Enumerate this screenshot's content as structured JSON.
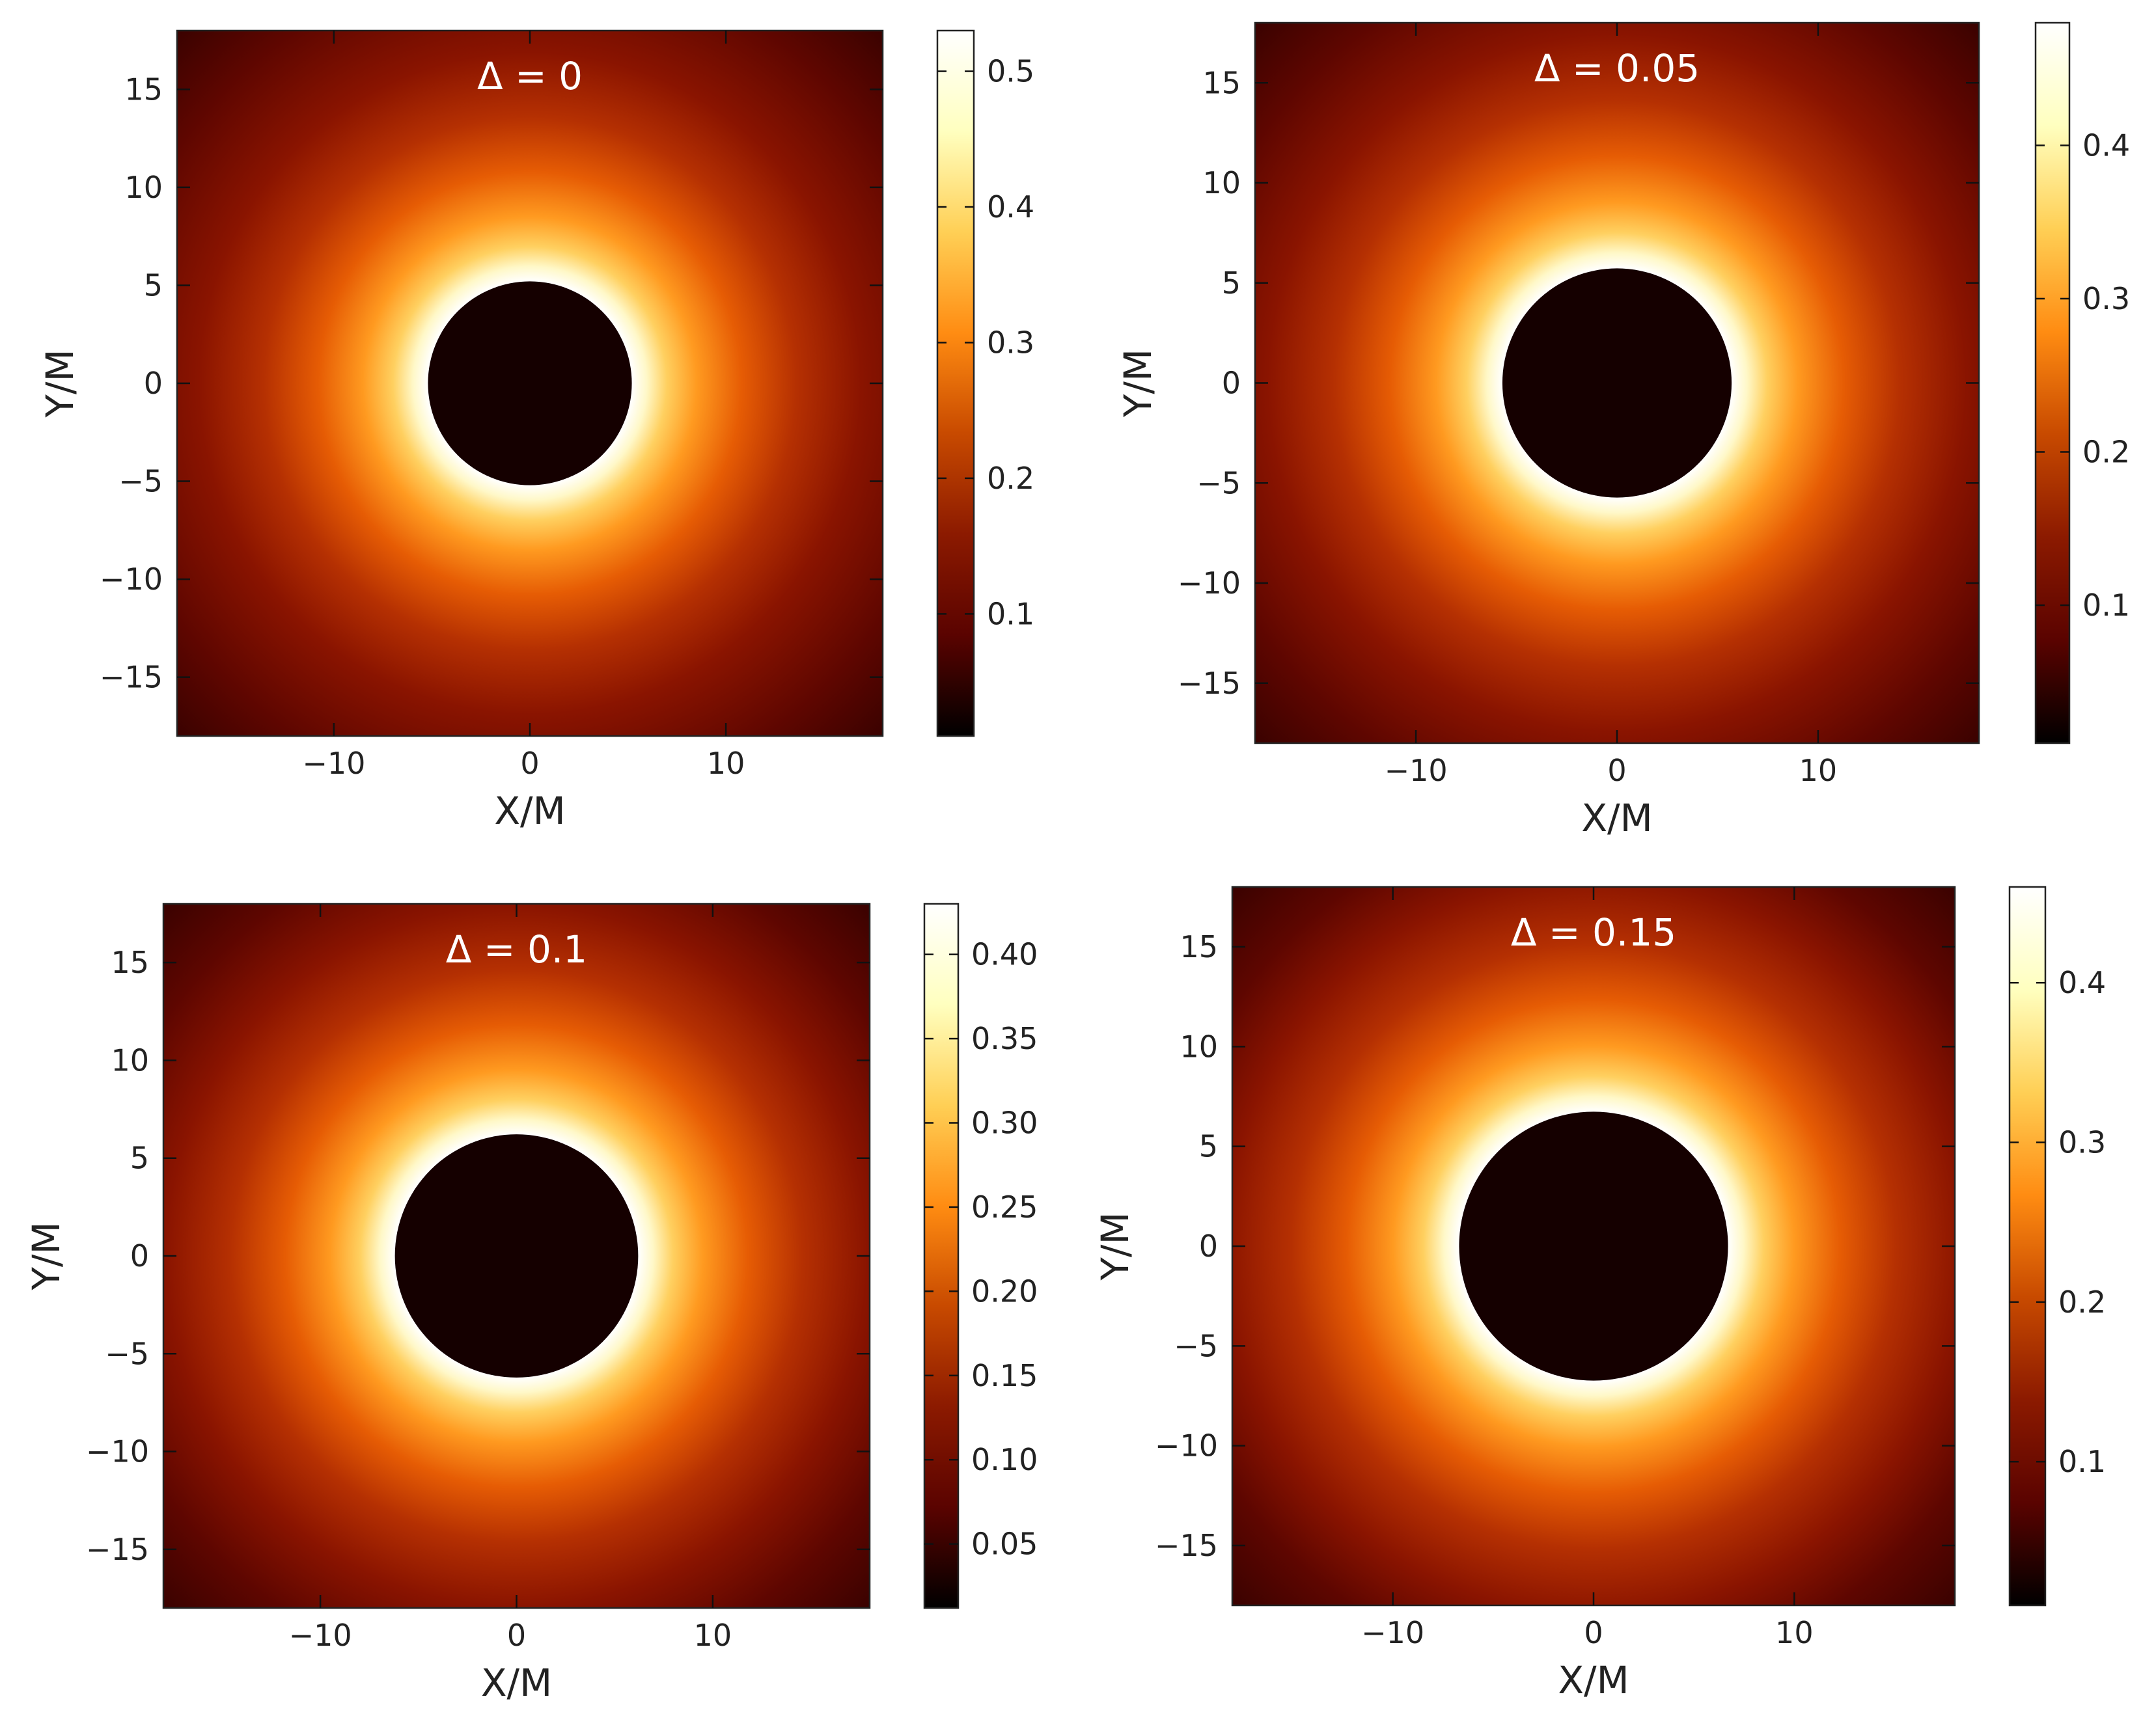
{
  "chart_data": [
    {
      "type": "heatmap",
      "title": "Δ = 0",
      "xlabel": "X/M",
      "ylabel": "Y/M",
      "xlim": [
        -18,
        18
      ],
      "ylim": [
        -18,
        18
      ],
      "xticks": [
        -10,
        0,
        10
      ],
      "yticks": [
        -15,
        -10,
        -5,
        0,
        5,
        10,
        15
      ],
      "shadow_radius": 5.2,
      "colorbar": {
        "range": [
          0.01,
          0.53
        ],
        "ticks": [
          0.1,
          0.2,
          0.3,
          0.4,
          0.5
        ],
        "tick_labels": [
          "0.1",
          "0.2",
          "0.3",
          "0.4",
          "0.5"
        ]
      }
    },
    {
      "type": "heatmap",
      "title": "Δ = 0.05",
      "xlabel": "X/M",
      "ylabel": "Y/M",
      "xlim": [
        -18,
        18
      ],
      "ylim": [
        -18,
        18
      ],
      "xticks": [
        -10,
        0,
        10
      ],
      "yticks": [
        -15,
        -10,
        -5,
        0,
        5,
        10,
        15
      ],
      "shadow_radius": 5.7,
      "colorbar": {
        "range": [
          0.01,
          0.48
        ],
        "ticks": [
          0.1,
          0.2,
          0.3,
          0.4
        ],
        "tick_labels": [
          "0.1",
          "0.2",
          "0.3",
          "0.4"
        ]
      }
    },
    {
      "type": "heatmap",
      "title": "Δ = 0.1",
      "xlabel": "X/M",
      "ylabel": "Y/M",
      "xlim": [
        -18,
        18
      ],
      "ylim": [
        -18,
        18
      ],
      "xticks": [
        -10,
        0,
        10
      ],
      "yticks": [
        -15,
        -10,
        -5,
        0,
        5,
        10,
        15
      ],
      "shadow_radius": 6.2,
      "colorbar": {
        "range": [
          0.012,
          0.43
        ],
        "ticks": [
          0.05,
          0.1,
          0.15,
          0.2,
          0.25,
          0.3,
          0.35,
          0.4
        ],
        "tick_labels": [
          "0.05",
          "0.10",
          "0.15",
          "0.20",
          "0.25",
          "0.30",
          "0.35",
          "0.40"
        ]
      }
    },
    {
      "type": "heatmap",
      "title": "Δ = 0.15",
      "xlabel": "X/M",
      "ylabel": "Y/M",
      "xlim": [
        -18,
        18
      ],
      "ylim": [
        -18,
        18
      ],
      "xticks": [
        -10,
        0,
        10
      ],
      "yticks": [
        -15,
        -10,
        -5,
        0,
        5,
        10,
        15
      ],
      "shadow_radius": 6.7,
      "colorbar": {
        "range": [
          0.01,
          0.46
        ],
        "ticks": [
          0.1,
          0.2,
          0.3,
          0.4
        ],
        "tick_labels": [
          "0.1",
          "0.2",
          "0.3",
          "0.4"
        ]
      }
    }
  ],
  "colors": {
    "shadow": "#150000",
    "colormap": [
      "#000000",
      "#5a0300",
      "#8c1a00",
      "#c84a00",
      "#ff8c12",
      "#ffcf55",
      "#ffffbf",
      "#ffffff"
    ]
  }
}
